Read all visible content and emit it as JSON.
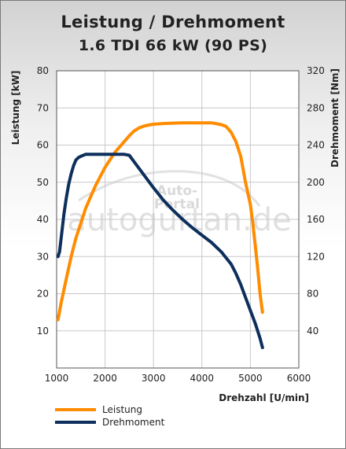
{
  "chart_data": {
    "type": "line",
    "title": "Leistung / Drehmoment",
    "subtitle": "1.6 TDI 66 kW (90 PS)",
    "xlabel": "Drehzahl [U/min]",
    "ylabel_left": "Leistung [kW]",
    "ylabel_right": "Drehmoment [Nm]",
    "xlim": [
      1000,
      6000
    ],
    "ylim_left": [
      0,
      80
    ],
    "ylim_right": [
      0,
      320
    ],
    "x_ticks": [
      "1000",
      "2000",
      "3000",
      "4000",
      "5000",
      "6000"
    ],
    "y_ticks_left": [
      "10",
      "20",
      "30",
      "40",
      "50",
      "60",
      "70",
      "80"
    ],
    "y_ticks_right": [
      "40",
      "80",
      "120",
      "160",
      "200",
      "240",
      "280",
      "320"
    ],
    "grid": true,
    "legend_position": "bottom-left",
    "watermark": "Auto-Portal autogurtan.de",
    "series": [
      {
        "name": "Leistung",
        "axis": "left",
        "color": "#ff8c00",
        "x": [
          1030,
          1100,
          1200,
          1300,
          1400,
          1500,
          1600,
          1700,
          1800,
          1900,
          2000,
          2100,
          2200,
          2300,
          2400,
          2500,
          2600,
          2700,
          2800,
          2900,
          3000,
          3200,
          3400,
          3600,
          3800,
          4000,
          4200,
          4400,
          4500,
          4600,
          4700,
          4800,
          4900,
          5000,
          5050,
          5100,
          5150,
          5200,
          5250
        ],
        "y": [
          13,
          18,
          24,
          30,
          35,
          39,
          43,
          46,
          49,
          51.5,
          54,
          56,
          58,
          59.5,
          61,
          62.5,
          63.8,
          64.6,
          65.1,
          65.4,
          65.6,
          65.8,
          65.9,
          66,
          66,
          66,
          66,
          65.5,
          65,
          63.5,
          61,
          57,
          50,
          44,
          39,
          33,
          27,
          20,
          15
        ]
      },
      {
        "name": "Drehmoment",
        "axis": "right",
        "color": "#0d2f5c",
        "x": [
          1030,
          1060,
          1100,
          1150,
          1200,
          1250,
          1300,
          1350,
          1400,
          1450,
          1500,
          1600,
          1700,
          1800,
          2000,
          2200,
          2400,
          2500,
          2600,
          2800,
          3000,
          3200,
          3400,
          3600,
          3800,
          4000,
          4200,
          4400,
          4600,
          4700,
          4800,
          4900,
          5000,
          5100,
          5200,
          5250
        ],
        "y": [
          120,
          125,
          143,
          165,
          183,
          198,
          209,
          218,
          224,
          226.5,
          228,
          230,
          230,
          230,
          230,
          230,
          230,
          229,
          222,
          208,
          194,
          181,
          170,
          160,
          151,
          143,
          135,
          125,
          112,
          102,
          90,
          76,
          62,
          48,
          32,
          22
        ]
      }
    ]
  }
}
